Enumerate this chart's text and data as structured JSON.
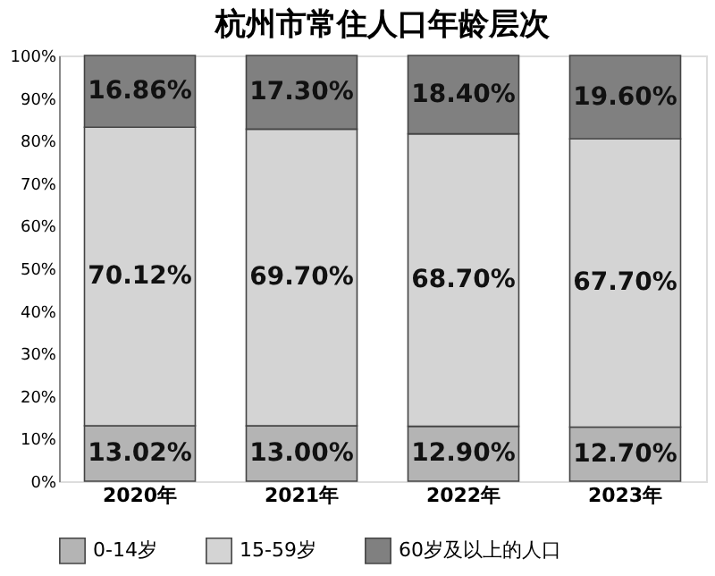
{
  "chart_data": {
    "type": "bar",
    "title": "杭州市常住人口年龄层次",
    "categories": [
      "2020年",
      "2021年",
      "2022年",
      "2023年"
    ],
    "stacked": true,
    "series": [
      {
        "name": "0-14岁",
        "color": "#b4b4b4",
        "values": [
          13.02,
          13.0,
          12.9,
          12.7
        ],
        "value_labels": [
          "13.02%",
          "13.00%",
          "12.90%",
          "12.70%"
        ]
      },
      {
        "name": "15-59岁",
        "color": "#d4d4d4",
        "values": [
          70.12,
          69.7,
          68.7,
          67.7
        ],
        "value_labels": [
          "70.12%",
          "69.70%",
          "68.70%",
          "67.70%"
        ]
      },
      {
        "name": "60岁及以上的人口",
        "color": "#808080",
        "values": [
          16.86,
          17.3,
          18.4,
          19.6
        ],
        "value_labels": [
          "16.86%",
          "17.30%",
          "18.40%",
          "19.60%"
        ]
      }
    ],
    "ylim": [
      0,
      100
    ],
    "yticks": [
      {
        "value": 0,
        "label": "0%"
      },
      {
        "value": 10,
        "label": "10%"
      },
      {
        "value": 20,
        "label": "20%"
      },
      {
        "value": 30,
        "label": "30%"
      },
      {
        "value": 40,
        "label": "40%"
      },
      {
        "value": 50,
        "label": "50%"
      },
      {
        "value": 60,
        "label": "60%"
      },
      {
        "value": 70,
        "label": "70%"
      },
      {
        "value": 80,
        "label": "80%"
      },
      {
        "value": 90,
        "label": "90%"
      },
      {
        "value": 100,
        "label": "100%"
      }
    ],
    "legend": "bottom",
    "grid": false
  }
}
